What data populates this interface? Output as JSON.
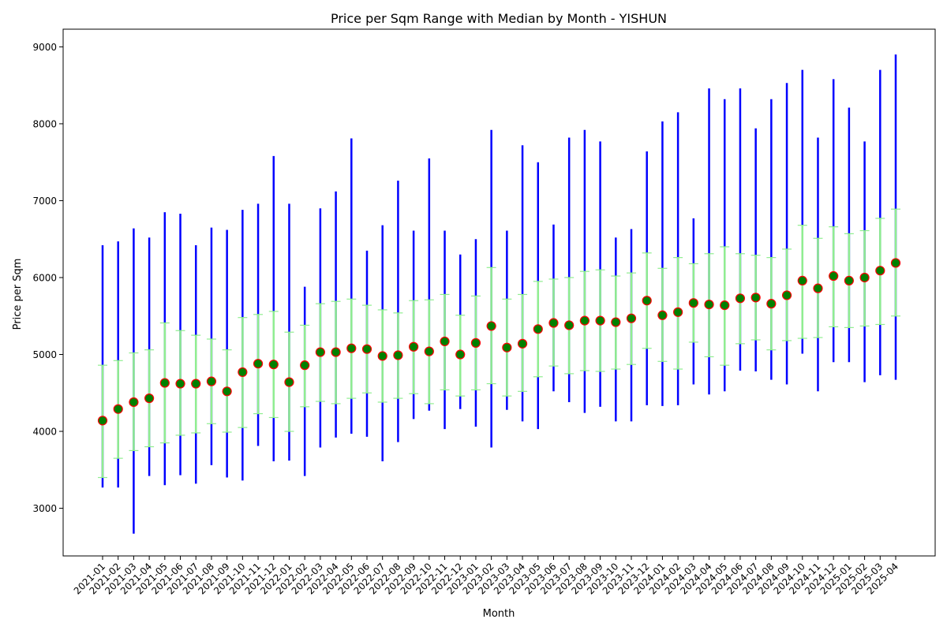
{
  "chart_data": {
    "type": "range-median",
    "title": "Price per Sqm Range with Median by Month - YISHUN",
    "xlabel": "Month",
    "ylabel": "Price per Sqm",
    "ylim": [
      2380,
      9230
    ],
    "yticks": [
      3000,
      4000,
      5000,
      6000,
      7000,
      8000,
      9000
    ],
    "grid": false,
    "legend": "none",
    "colors": {
      "range": "#0000ff",
      "iqr": "#90ee90",
      "median_fill": "#008000",
      "median_edge": "#ff0000"
    },
    "categories": [
      "2021-01",
      "2021-02",
      "2021-03",
      "2021-04",
      "2021-05",
      "2021-06",
      "2021-07",
      "2021-08",
      "2021-09",
      "2021-10",
      "2021-11",
      "2021-12",
      "2022-01",
      "2022-02",
      "2022-03",
      "2022-04",
      "2022-05",
      "2022-06",
      "2022-07",
      "2022-08",
      "2022-09",
      "2022-10",
      "2022-11",
      "2022-12",
      "2023-01",
      "2023-02",
      "2023-03",
      "2023-04",
      "2023-05",
      "2023-06",
      "2023-07",
      "2023-08",
      "2023-09",
      "2023-10",
      "2023-11",
      "2023-12",
      "2024-01",
      "2024-02",
      "2024-03",
      "2024-04",
      "2024-05",
      "2024-06",
      "2024-07",
      "2024-08",
      "2024-09",
      "2024-10",
      "2024-11",
      "2024-12",
      "2025-01",
      "2025-02",
      "2025-03",
      "2025-04"
    ],
    "min": [
      3270,
      3270,
      2670,
      3420,
      3300,
      3430,
      3320,
      3560,
      3400,
      3360,
      3810,
      3610,
      3620,
      3420,
      3790,
      3920,
      3970,
      3930,
      3610,
      3860,
      4160,
      4270,
      4030,
      4290,
      4060,
      3790,
      4280,
      4130,
      4030,
      4520,
      4380,
      4240,
      4320,
      4130,
      4130,
      4340,
      4330,
      4340,
      4610,
      4480,
      4520,
      4790,
      4780,
      4670,
      4610,
      5010,
      4520,
      4900,
      4900,
      4640,
      4730,
      4670
    ],
    "max": [
      6420,
      6470,
      6640,
      6520,
      6850,
      6830,
      6420,
      6650,
      6620,
      6880,
      6960,
      7580,
      6960,
      5880,
      6900,
      7120,
      7810,
      6350,
      6680,
      7260,
      6610,
      7550,
      6610,
      6300,
      6500,
      7920,
      6610,
      7720,
      7500,
      6690,
      7820,
      7920,
      7770,
      6520,
      6630,
      7640,
      8030,
      8150,
      6770,
      8460,
      8320,
      8460,
      7940,
      8320,
      8530,
      8700,
      7820,
      8580,
      8210,
      7770,
      8700,
      8900
    ],
    "q1": [
      3400,
      3650,
      3750,
      3800,
      3850,
      3950,
      3980,
      4100,
      3990,
      4050,
      4230,
      4180,
      4000,
      4320,
      4390,
      4360,
      4430,
      4500,
      4380,
      4430,
      4490,
      4360,
      4540,
      4460,
      4540,
      4620,
      4460,
      4520,
      4710,
      4850,
      4750,
      4790,
      4780,
      4810,
      4870,
      5080,
      4910,
      4810,
      5160,
      4970,
      4860,
      5140,
      5190,
      5060,
      5180,
      5210,
      5220,
      5360,
      5350,
      5370,
      5390,
      5500
    ],
    "q3": [
      4860,
      4920,
      5020,
      5060,
      5410,
      5310,
      5250,
      5200,
      5060,
      5480,
      5520,
      5560,
      5290,
      5380,
      5660,
      5690,
      5720,
      5640,
      5580,
      5540,
      5700,
      5710,
      5780,
      5510,
      5760,
      6130,
      5720,
      5780,
      5950,
      5980,
      6000,
      6080,
      6100,
      6020,
      6060,
      6320,
      6120,
      6260,
      6180,
      6310,
      6400,
      6310,
      6290,
      6260,
      6370,
      6680,
      6510,
      6660,
      6570,
      6610,
      6770,
      6890
    ],
    "median": [
      4140,
      4290,
      4380,
      4430,
      4630,
      4620,
      4620,
      4650,
      4520,
      4770,
      4880,
      4870,
      4640,
      4860,
      5030,
      5030,
      5080,
      5070,
      4980,
      4990,
      5100,
      5040,
      5170,
      5000,
      5150,
      5370,
      5090,
      5140,
      5330,
      5410,
      5380,
      5440,
      5440,
      5420,
      5470,
      5700,
      5510,
      5550,
      5670,
      5650,
      5640,
      5730,
      5740,
      5660,
      5770,
      5960,
      5860,
      6020,
      5960,
      6000,
      6090,
      6190
    ]
  }
}
